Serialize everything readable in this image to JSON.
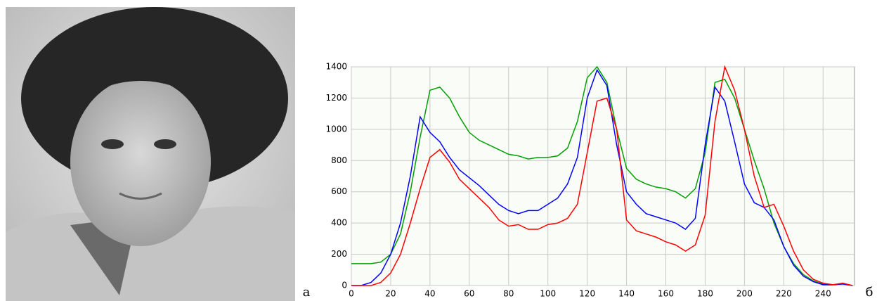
{
  "figure": {
    "labels": [
      "а",
      "б"
    ]
  },
  "chart_data": {
    "type": "line",
    "x": [
      0,
      5,
      10,
      15,
      20,
      25,
      30,
      35,
      40,
      45,
      50,
      55,
      60,
      65,
      70,
      75,
      80,
      85,
      90,
      95,
      100,
      105,
      110,
      115,
      120,
      125,
      130,
      135,
      140,
      145,
      150,
      155,
      160,
      165,
      170,
      175,
      180,
      185,
      190,
      195,
      200,
      205,
      210,
      215,
      220,
      225,
      230,
      235,
      240,
      245,
      250,
      255
    ],
    "series": [
      {
        "color": "#00a000",
        "values": [
          140,
          140,
          140,
          150,
          200,
          330,
          600,
          950,
          1250,
          1270,
          1200,
          1080,
          980,
          930,
          900,
          870,
          840,
          830,
          810,
          820,
          820,
          830,
          880,
          1050,
          1330,
          1400,
          1300,
          1000,
          750,
          680,
          650,
          630,
          620,
          600,
          560,
          620,
          850,
          1300,
          1320,
          1200,
          1000,
          800,
          620,
          400,
          250,
          140,
          70,
          30,
          10,
          5,
          10,
          0
        ]
      },
      {
        "color": "#0000ff",
        "values": [
          0,
          0,
          20,
          80,
          200,
          400,
          700,
          1080,
          980,
          920,
          820,
          740,
          690,
          640,
          580,
          520,
          480,
          460,
          480,
          480,
          520,
          560,
          650,
          820,
          1200,
          1380,
          1280,
          900,
          600,
          520,
          460,
          440,
          420,
          400,
          360,
          430,
          900,
          1270,
          1180,
          920,
          650,
          530,
          500,
          420,
          250,
          130,
          60,
          25,
          5,
          5,
          10,
          0
        ]
      },
      {
        "color": "#ff0000",
        "values": [
          0,
          0,
          0,
          20,
          80,
          200,
          400,
          620,
          820,
          870,
          790,
          680,
          620,
          560,
          500,
          420,
          380,
          390,
          360,
          360,
          390,
          400,
          430,
          520,
          850,
          1180,
          1200,
          1000,
          420,
          350,
          330,
          310,
          280,
          260,
          220,
          260,
          450,
          1050,
          1400,
          1250,
          1000,
          700,
          500,
          520,
          380,
          220,
          100,
          40,
          15,
          5,
          15,
          0
        ]
      }
    ],
    "xlim": [
      0,
      256
    ],
    "xticks": [
      0,
      20,
      40,
      60,
      80,
      100,
      120,
      140,
      160,
      180,
      200,
      220,
      240
    ],
    "ylim": [
      0,
      1400
    ],
    "yticks": [
      0,
      200,
      400,
      600,
      800,
      1000,
      1200,
      1400
    ],
    "grid": true
  }
}
